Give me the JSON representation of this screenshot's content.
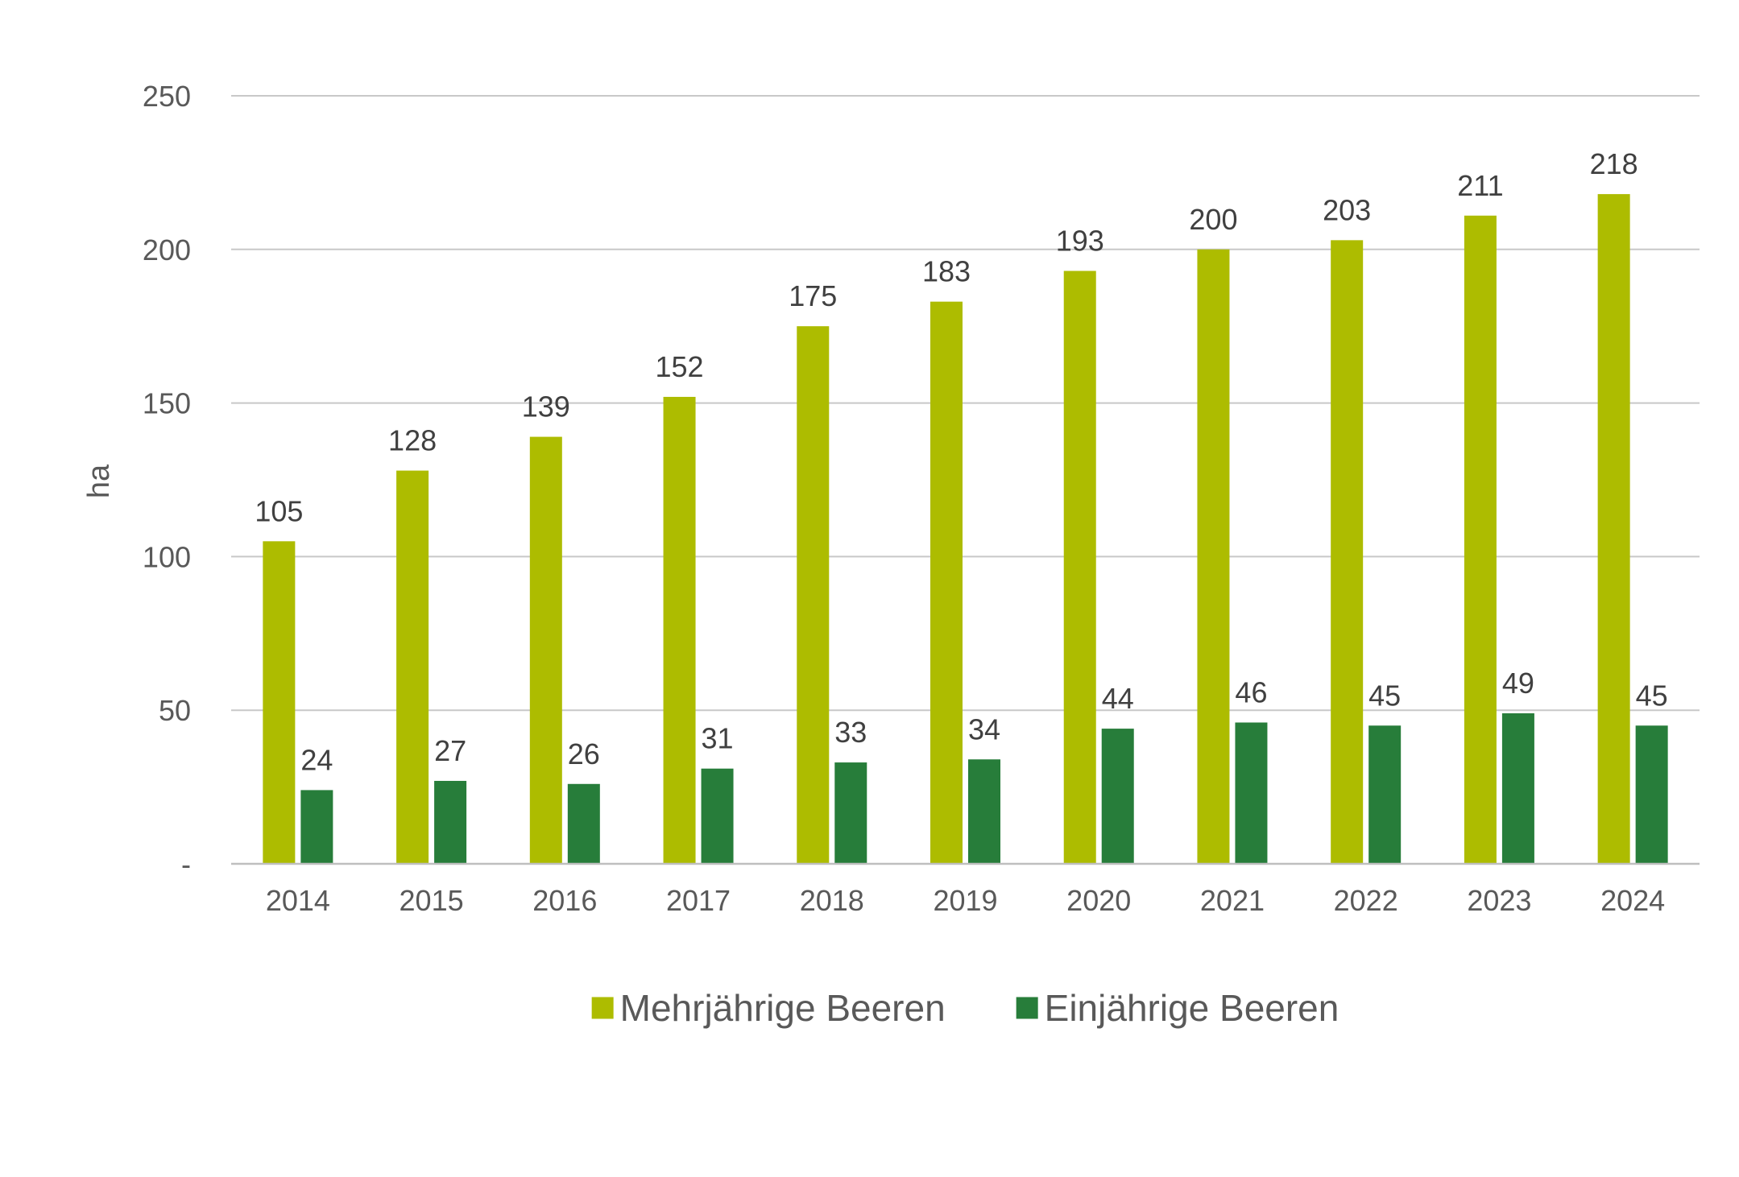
{
  "chart_data": {
    "type": "bar",
    "title": "",
    "xlabel": "",
    "ylabel": "ha",
    "ylim": [
      0,
      250
    ],
    "y_ticks": [
      {
        "value": 0,
        "label": "-"
      },
      {
        "value": 50,
        "label": "50"
      },
      {
        "value": 100,
        "label": "100"
      },
      {
        "value": 150,
        "label": "150"
      },
      {
        "value": 200,
        "label": "200"
      },
      {
        "value": 250,
        "label": "250"
      }
    ],
    "grid": true,
    "legend_position": "bottom",
    "categories": [
      "2014",
      "2015",
      "2016",
      "2017",
      "2018",
      "2019",
      "2020",
      "2021",
      "2022",
      "2023",
      "2024"
    ],
    "series": [
      {
        "name": "Mehrjährige Beeren",
        "color": "#adbc00",
        "values": [
          105,
          128,
          139,
          152,
          175,
          183,
          193,
          200,
          203,
          211,
          218
        ]
      },
      {
        "name": "Einjährige Beeren",
        "color": "#277d3a",
        "values": [
          24,
          27,
          26,
          31,
          33,
          34,
          44,
          46,
          45,
          49,
          45
        ]
      }
    ]
  }
}
